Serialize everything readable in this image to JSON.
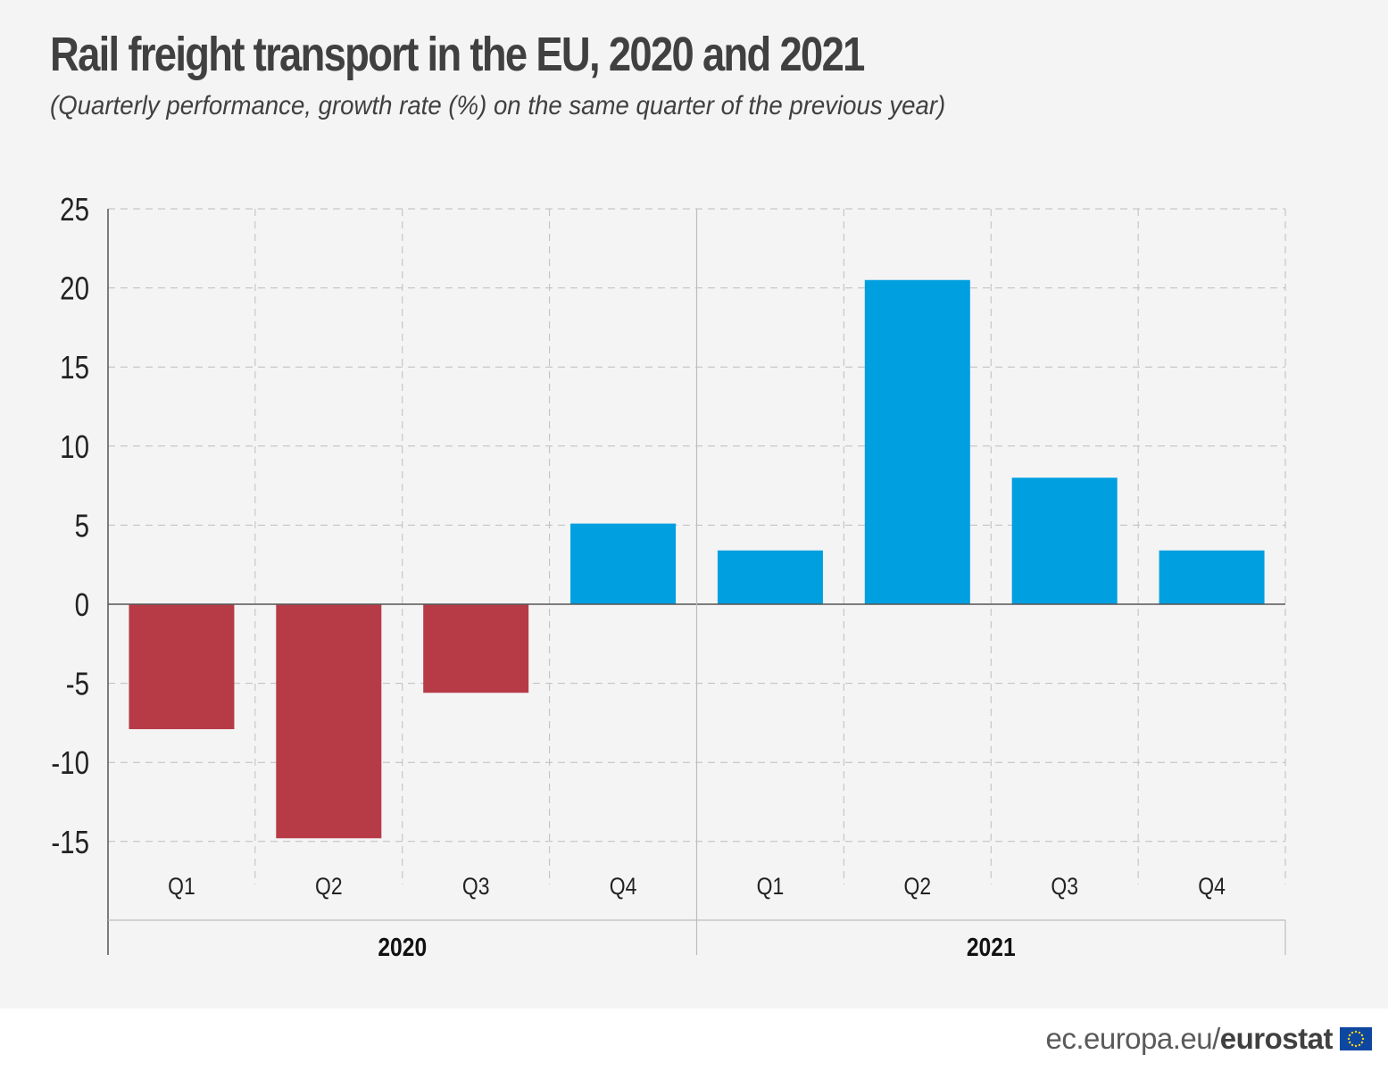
{
  "chart_data": {
    "type": "bar",
    "title": "Rail freight transport in the EU, 2020 and 2021",
    "subtitle": "(Quarterly performance, growth rate (%) on the same quarter of the previous year)",
    "categories": [
      "Q1",
      "Q2",
      "Q3",
      "Q4",
      "Q1",
      "Q2",
      "Q3",
      "Q4"
    ],
    "groups": [
      {
        "label": "2020",
        "categories": [
          "Q1",
          "Q2",
          "Q3",
          "Q4"
        ]
      },
      {
        "label": "2021",
        "categories": [
          "Q1",
          "Q2",
          "Q3",
          "Q4"
        ]
      }
    ],
    "values": [
      -7.9,
      -14.8,
      -5.6,
      5.1,
      3.4,
      20.5,
      8.0,
      3.4
    ],
    "ylim": [
      -15,
      25
    ],
    "yticks": [
      25,
      20,
      15,
      10,
      5,
      0,
      -5,
      -10,
      -15
    ],
    "xlabel": "",
    "ylabel": "",
    "grid": true,
    "colors": {
      "negative": "#b63b47",
      "positive": "#009fe0"
    }
  },
  "footer": {
    "site": "ec.europa.eu/",
    "brand": "eurostat"
  },
  "icons": {
    "flag": "eu-flag-icon"
  }
}
